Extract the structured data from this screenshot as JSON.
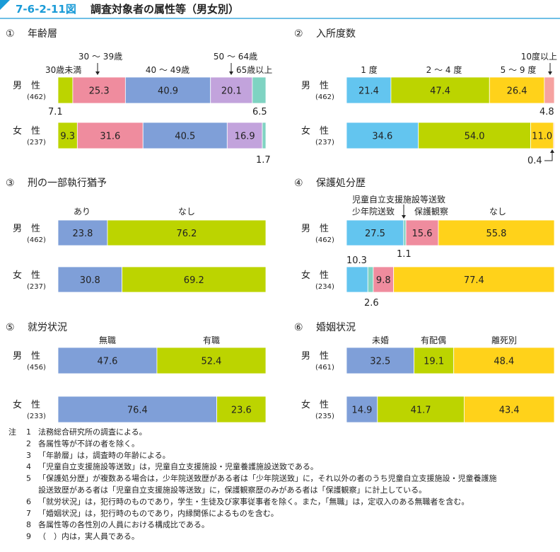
{
  "figure": {
    "number": "7-6-2-11図",
    "title": "調査対象者の属性等（男女別）"
  },
  "colors": {
    "header_accent": "#1a9bd7",
    "blue": "#7f9fd8",
    "green": "#bcd400",
    "pink": "#ef8c9e",
    "lilac": "#c2a3dc",
    "teal": "#7fd3c2",
    "sky": "#63c5ef",
    "yellow": "#ffd21a",
    "salmon": "#f6a2a0"
  },
  "chart_data": [
    {
      "type": "bar",
      "orientation": "horizontal-stacked",
      "title": "① 年齢層",
      "categories": [
        "30歳未満",
        "30〜39歳",
        "40〜49歳",
        "50〜64歳",
        "65歳以上"
      ],
      "category_labels": [
        "30歳未満",
        "30 〜 39歳",
        "40 〜 49歳",
        "50 〜 64歳",
        "65歳以上"
      ],
      "rows": [
        {
          "label": "男　性",
          "n": "(462)",
          "values": [
            7.1,
            25.3,
            40.9,
            20.1,
            6.5
          ]
        },
        {
          "label": "女　性",
          "n": "(237)",
          "values": [
            9.3,
            31.6,
            40.5,
            16.9,
            1.7
          ]
        }
      ]
    },
    {
      "type": "bar",
      "orientation": "horizontal-stacked",
      "title": "② 入所度数",
      "categories": [
        "1度",
        "2〜4度",
        "5〜9度",
        "10度以上"
      ],
      "category_labels": [
        "1 度",
        "2 〜 4 度",
        "5 〜 9 度",
        "10度以上"
      ],
      "rows": [
        {
          "label": "男　性",
          "n": "(462)",
          "values": [
            21.4,
            47.4,
            26.4,
            4.8
          ]
        },
        {
          "label": "女　性",
          "n": "(237)",
          "values": [
            34.6,
            54.0,
            11.0,
            0.4
          ]
        }
      ]
    },
    {
      "type": "bar",
      "orientation": "horizontal-stacked",
      "title": "③ 刑の一部執行猶予",
      "categories": [
        "あり",
        "なし"
      ],
      "category_labels": [
        "あり",
        "なし"
      ],
      "rows": [
        {
          "label": "男　性",
          "n": "(462)",
          "values": [
            23.8,
            76.2
          ]
        },
        {
          "label": "女　性",
          "n": "(237)",
          "values": [
            30.8,
            69.2
          ]
        }
      ]
    },
    {
      "type": "bar",
      "orientation": "horizontal-stacked",
      "title": "④ 保護処分歴",
      "categories": [
        "少年院送致",
        "児童自立支援施設等送致",
        "保護観察",
        "なし"
      ],
      "category_labels": [
        "少年院送致",
        "児童自立支援施設等送致",
        "保護観察",
        "なし"
      ],
      "rows": [
        {
          "label": "男　性",
          "n": "(462)",
          "values": [
            27.5,
            1.1,
            15.6,
            55.8
          ]
        },
        {
          "label": "女　性",
          "n": "(234)",
          "values": [
            10.3,
            2.6,
            9.8,
            77.4
          ]
        }
      ]
    },
    {
      "type": "bar",
      "orientation": "horizontal-stacked",
      "title": "⑤ 就労状況",
      "categories": [
        "無職",
        "有職"
      ],
      "category_labels": [
        "無職",
        "有職"
      ],
      "rows": [
        {
          "label": "男　性",
          "n": "(456)",
          "values": [
            47.6,
            52.4
          ]
        },
        {
          "label": "女　性",
          "n": "(233)",
          "values": [
            76.4,
            23.6
          ]
        }
      ]
    },
    {
      "type": "bar",
      "orientation": "horizontal-stacked",
      "title": "⑥ 婚姻状況",
      "categories": [
        "未婚",
        "有配偶",
        "離死別"
      ],
      "category_labels": [
        "未婚",
        "有配偶",
        "離死別"
      ],
      "rows": [
        {
          "label": "男　性",
          "n": "(461)",
          "values": [
            32.5,
            19.1,
            48.4
          ]
        },
        {
          "label": "女　性",
          "n": "(235)",
          "values": [
            14.9,
            41.7,
            43.4
          ]
        }
      ]
    }
  ],
  "notes": {
    "prefix": "注",
    "items": [
      {
        "no": "1",
        "text": "法務総合研究所の調査による。"
      },
      {
        "no": "2",
        "text": "各属性等が不詳の者を除く。"
      },
      {
        "no": "3",
        "text": "「年齢層」は，調査時の年齢による。"
      },
      {
        "no": "4",
        "text": "「児童自立支援施設等送致」は，児童自立支援施設・児童養護施設送致である。"
      },
      {
        "no": "5",
        "text": "「保護処分歴」が複数ある場合は，少年院送致歴がある者は「少年院送致」に，それ以外の者のうち児童自立支援施設・児童養護施"
      },
      {
        "no": "",
        "text": "設送致歴がある者は「児童自立支援施設等送致」に，保護観察歴のみがある者は「保護観察」に計上している。"
      },
      {
        "no": "6",
        "text": "「就労状況」は，犯行時のものであり，学生・生徒及び家事従事者を除く。また，「無職」は，定収入のある無職者を含む。"
      },
      {
        "no": "7",
        "text": "「婚姻状況」は，犯行時のものであり，内縁関係によるものを含む。"
      },
      {
        "no": "8",
        "text": "各属性等の各性別の人員における構成比である。"
      },
      {
        "no": "9",
        "text": "（　）内は，実人員である。"
      }
    ]
  }
}
